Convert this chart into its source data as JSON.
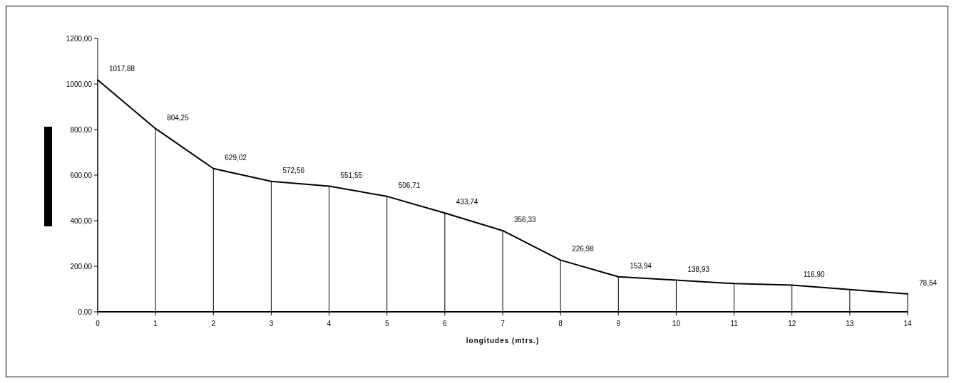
{
  "chart_data": {
    "type": "line",
    "xlabel": "longitudes (mtrs.)",
    "x": [
      0,
      1,
      2,
      3,
      4,
      5,
      6,
      7,
      8,
      9,
      10,
      11,
      12,
      13,
      14
    ],
    "series": [
      {
        "color": "#000000",
        "values": [
          1017.88,
          804.25,
          629.02,
          572.56,
          551.55,
          506.71,
          433.74,
          356.33,
          226.98,
          153.94,
          138.93,
          124,
          116.9,
          98,
          78.54
        ],
        "value_labels": [
          "1017,88",
          "804,25",
          "629,02",
          "572,56",
          "551,55",
          "506,71",
          "433,74",
          "356,33",
          "226,98",
          "153,94",
          "138,93",
          null,
          "116,90",
          null,
          "78,54"
        ]
      },
      {
        "type": "bar",
        "color": "#000000",
        "values": [
          1017.88,
          804.25,
          629.02,
          572.56,
          551.55,
          506.71,
          433.74,
          356.33,
          226.98,
          153.94,
          138.93,
          124,
          116.9,
          98,
          78.54
        ]
      }
    ],
    "xlim": [
      0,
      14
    ],
    "xticks": [
      0,
      1,
      2,
      3,
      4,
      5,
      6,
      7,
      8,
      9,
      10,
      11,
      12,
      13,
      14
    ],
    "ylim": [
      0,
      1200
    ],
    "yticks": [
      {
        "value": 0,
        "label": "0,00"
      },
      {
        "value": 200,
        "label": "200,00"
      },
      {
        "value": 400,
        "label": "400,00"
      },
      {
        "value": 600,
        "label": "600,00"
      },
      {
        "value": 800,
        "label": "800,00"
      },
      {
        "value": 1000,
        "label": "1000,00"
      },
      {
        "value": 1200,
        "label": "1200,00"
      }
    ],
    "grid": false,
    "marker": "none",
    "line_style": "solid"
  }
}
